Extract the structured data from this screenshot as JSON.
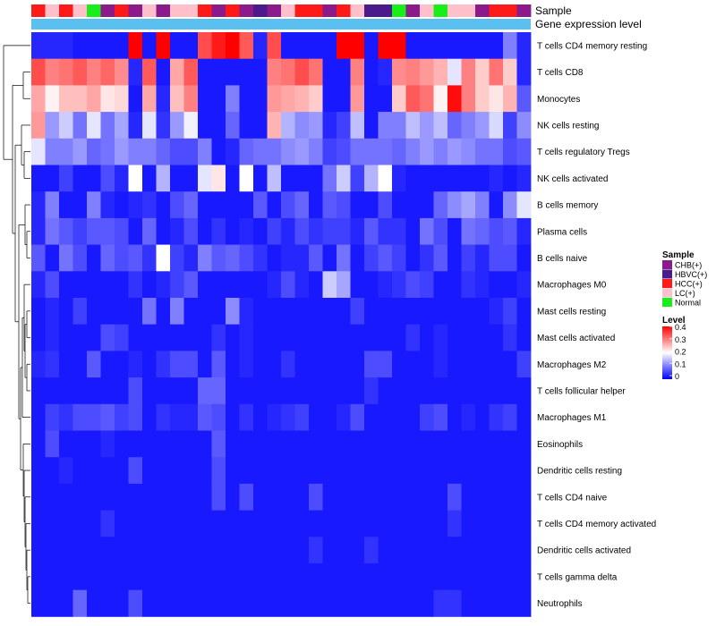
{
  "chart_data": {
    "type": "heatmap",
    "title": "",
    "annotation_labels": {
      "sample": "Sample",
      "gene_expression": "Gene expression level"
    },
    "column_count": 36,
    "rows": [
      "T cells CD4 memory resting",
      "T cells CD8",
      "Monocytes",
      "NK cells resting",
      "T cells regulatory  Tregs",
      "NK cells activated",
      "B cells memory",
      "Plasma cells",
      "B cells naive",
      "Macrophages M0",
      "Mast cells resting",
      "Mast cells activated",
      "Macrophages M2",
      "T cells follicular helper",
      "Macrophages M1",
      "Eosinophils",
      "Dendritic cells resting",
      "T cells CD4 naive",
      "T cells CD4 memory activated",
      "Dendritic cells activated",
      "T cells gamma delta",
      "Neutrophils"
    ],
    "column_samples": [
      "HCC(+)",
      "LC(+)",
      "HCC(+)",
      "LC(+)",
      "Normal",
      "CHB(+)",
      "HCC(+)",
      "CHB(+)",
      "LC(+)",
      "CHB(+)",
      "LC(+)",
      "LC(+)",
      "HCC(+)",
      "CHB(+)",
      "HCC(+)",
      "CHB(+)",
      "HBVC(+)",
      "CHB(+)",
      "LC(+)",
      "HCC(+)",
      "HCC(+)",
      "CHB(+)",
      "HCC(+)",
      "LC(+)",
      "HBVC(+)",
      "HBVC(+)",
      "Normal",
      "CHB(+)",
      "LC(+)",
      "Normal",
      "LC(+)",
      "LC(+)",
      "CHB(+)",
      "HCC(+)",
      "HCC(+)",
      "CHB(+)"
    ],
    "values": [
      [
        0.03,
        0.03,
        0.03,
        0.02,
        0.02,
        0.02,
        0.02,
        0.4,
        0.02,
        0.4,
        0.02,
        0.02,
        0.34,
        0.38,
        0.4,
        0.33,
        0.03,
        0.34,
        0.02,
        0.02,
        0.02,
        0.02,
        0.4,
        0.4,
        0.02,
        0.4,
        0.4,
        0.02,
        0.02,
        0.02,
        0.02,
        0.02,
        0.02,
        0.02,
        0.1,
        0.03
      ],
      [
        0.34,
        0.3,
        0.31,
        0.33,
        0.3,
        0.32,
        0.29,
        0.03,
        0.33,
        0.02,
        0.27,
        0.33,
        0.02,
        0.02,
        0.02,
        0.02,
        0.02,
        0.3,
        0.31,
        0.34,
        0.31,
        0.02,
        0.02,
        0.3,
        0.02,
        0.03,
        0.29,
        0.3,
        0.28,
        0.26,
        0.18,
        0.3,
        0.24,
        0.31,
        0.24,
        0.03
      ],
      [
        0.27,
        0.21,
        0.25,
        0.25,
        0.27,
        0.22,
        0.23,
        0.02,
        0.27,
        0.03,
        0.25,
        0.3,
        0.02,
        0.02,
        0.1,
        0.02,
        0.02,
        0.28,
        0.27,
        0.26,
        0.24,
        0.02,
        0.02,
        0.28,
        0.02,
        0.02,
        0.24,
        0.33,
        0.31,
        0.21,
        0.39,
        0.3,
        0.24,
        0.22,
        0.26,
        0.07
      ],
      [
        0.28,
        0.12,
        0.16,
        0.09,
        0.18,
        0.09,
        0.13,
        0.03,
        0.18,
        0.04,
        0.12,
        0.19,
        0.02,
        0.02,
        0.08,
        0.02,
        0.02,
        0.26,
        0.14,
        0.11,
        0.12,
        0.03,
        0.05,
        0.15,
        0.02,
        0.1,
        0.1,
        0.15,
        0.12,
        0.15,
        0.08,
        0.1,
        0.12,
        0.17,
        0.05,
        0.11
      ],
      [
        0.18,
        0.1,
        0.1,
        0.12,
        0.08,
        0.09,
        0.12,
        0.1,
        0.1,
        0.08,
        0.06,
        0.06,
        0.1,
        0.02,
        0.03,
        0.08,
        0.09,
        0.09,
        0.11,
        0.12,
        0.1,
        0.05,
        0.06,
        0.09,
        0.09,
        0.09,
        0.08,
        0.1,
        0.12,
        0.1,
        0.12,
        0.11,
        0.09,
        0.09,
        0.06,
        0.07
      ],
      [
        0.02,
        0.02,
        0.05,
        0.02,
        0.02,
        0.06,
        0.03,
        0.2,
        0.02,
        0.14,
        0.02,
        0.02,
        0.18,
        0.22,
        0.02,
        0.2,
        0.02,
        0.15,
        0.02,
        0.02,
        0.02,
        0.09,
        0.16,
        0.05,
        0.14,
        0.2,
        0.03,
        0.02,
        0.02,
        0.02,
        0.02,
        0.02,
        0.02,
        0.03,
        0.02,
        0.03
      ],
      [
        0.03,
        0.1,
        0.02,
        0.02,
        0.1,
        0.03,
        0.02,
        0.03,
        0.04,
        0.02,
        0.06,
        0.08,
        0.02,
        0.02,
        0.02,
        0.02,
        0.07,
        0.02,
        0.06,
        0.08,
        0.02,
        0.07,
        0.06,
        0.02,
        0.02,
        0.06,
        0.02,
        0.02,
        0.02,
        0.08,
        0.11,
        0.13,
        0.1,
        0.02,
        0.11,
        0.18
      ],
      [
        0.03,
        0.09,
        0.07,
        0.05,
        0.07,
        0.07,
        0.06,
        0.02,
        0.08,
        0.02,
        0.03,
        0.06,
        0.02,
        0.04,
        0.02,
        0.03,
        0.02,
        0.05,
        0.03,
        0.06,
        0.04,
        0.05,
        0.05,
        0.03,
        0.07,
        0.04,
        0.04,
        0.02,
        0.09,
        0.06,
        0.02,
        0.09,
        0.08,
        0.06,
        0.07,
        0.03
      ],
      [
        0.07,
        0.02,
        0.09,
        0.06,
        0.02,
        0.08,
        0.06,
        0.07,
        0.04,
        0.2,
        0.05,
        0.03,
        0.1,
        0.07,
        0.08,
        0.06,
        0.04,
        0.02,
        0.03,
        0.03,
        0.07,
        0.02,
        0.09,
        0.02,
        0.05,
        0.07,
        0.05,
        0.02,
        0.04,
        0.07,
        0.02,
        0.05,
        0.03,
        0.06,
        0.06,
        0.02
      ],
      [
        0.03,
        0.06,
        0.02,
        0.02,
        0.02,
        0.02,
        0.02,
        0.04,
        0.02,
        0.03,
        0.05,
        0.07,
        0.02,
        0.02,
        0.02,
        0.02,
        0.02,
        0.03,
        0.06,
        0.03,
        0.02,
        0.16,
        0.13,
        0.02,
        0.02,
        0.03,
        0.04,
        0.06,
        0.05,
        0.02,
        0.02,
        0.04,
        0.03,
        0.02,
        0.02,
        0.03
      ],
      [
        0.02,
        0.03,
        0.02,
        0.05,
        0.02,
        0.02,
        0.02,
        0.02,
        0.09,
        0.02,
        0.1,
        0.02,
        0.02,
        0.02,
        0.11,
        0.03,
        0.02,
        0.02,
        0.02,
        0.02,
        0.02,
        0.02,
        0.02,
        0.05,
        0.02,
        0.02,
        0.02,
        0.02,
        0.02,
        0.02,
        0.02,
        0.02,
        0.02,
        0.03,
        0.05,
        0.02
      ],
      [
        0.02,
        0.03,
        0.02,
        0.02,
        0.02,
        0.06,
        0.05,
        0.02,
        0.02,
        0.02,
        0.02,
        0.02,
        0.02,
        0.04,
        0.02,
        0.03,
        0.02,
        0.02,
        0.02,
        0.02,
        0.02,
        0.02,
        0.02,
        0.02,
        0.02,
        0.02,
        0.02,
        0.04,
        0.02,
        0.03,
        0.02,
        0.02,
        0.02,
        0.02,
        0.04,
        0.02
      ],
      [
        0.03,
        0.04,
        0.02,
        0.02,
        0.07,
        0.02,
        0.02,
        0.03,
        0.02,
        0.04,
        0.06,
        0.06,
        0.02,
        0.07,
        0.02,
        0.03,
        0.02,
        0.02,
        0.04,
        0.02,
        0.02,
        0.02,
        0.02,
        0.02,
        0.06,
        0.06,
        0.02,
        0.02,
        0.02,
        0.03,
        0.02,
        0.02,
        0.02,
        0.02,
        0.02,
        0.05
      ],
      [
        0.02,
        0.02,
        0.02,
        0.02,
        0.02,
        0.02,
        0.02,
        0.06,
        0.02,
        0.02,
        0.02,
        0.02,
        0.08,
        0.08,
        0.02,
        0.02,
        0.02,
        0.02,
        0.02,
        0.02,
        0.02,
        0.02,
        0.02,
        0.02,
        0.04,
        0.02,
        0.02,
        0.02,
        0.02,
        0.02,
        0.02,
        0.02,
        0.02,
        0.02,
        0.02,
        0.02
      ],
      [
        0.02,
        0.05,
        0.04,
        0.06,
        0.06,
        0.07,
        0.05,
        0.06,
        0.02,
        0.04,
        0.03,
        0.03,
        0.07,
        0.06,
        0.02,
        0.04,
        0.02,
        0.03,
        0.04,
        0.05,
        0.02,
        0.02,
        0.03,
        0.06,
        0.02,
        0.02,
        0.02,
        0.02,
        0.05,
        0.06,
        0.02,
        0.03,
        0.02,
        0.04,
        0.05,
        0.02
      ],
      [
        0.02,
        0.06,
        0.02,
        0.02,
        0.02,
        0.03,
        0.02,
        0.02,
        0.02,
        0.02,
        0.02,
        0.02,
        0.02,
        0.07,
        0.02,
        0.02,
        0.02,
        0.02,
        0.02,
        0.02,
        0.02,
        0.02,
        0.02,
        0.02,
        0.02,
        0.02,
        0.02,
        0.02,
        0.02,
        0.02,
        0.02,
        0.02,
        0.02,
        0.02,
        0.02,
        0.02
      ],
      [
        0.02,
        0.02,
        0.03,
        0.02,
        0.02,
        0.02,
        0.02,
        0.06,
        0.02,
        0.02,
        0.02,
        0.02,
        0.02,
        0.06,
        0.02,
        0.02,
        0.02,
        0.02,
        0.02,
        0.02,
        0.02,
        0.02,
        0.02,
        0.02,
        0.02,
        0.02,
        0.02,
        0.02,
        0.02,
        0.02,
        0.02,
        0.02,
        0.02,
        0.02,
        0.02,
        0.02
      ],
      [
        0.02,
        0.02,
        0.02,
        0.02,
        0.02,
        0.02,
        0.02,
        0.02,
        0.02,
        0.02,
        0.02,
        0.02,
        0.02,
        0.06,
        0.02,
        0.06,
        0.02,
        0.02,
        0.02,
        0.02,
        0.06,
        0.02,
        0.02,
        0.02,
        0.02,
        0.02,
        0.02,
        0.02,
        0.02,
        0.02,
        0.06,
        0.02,
        0.02,
        0.02,
        0.02,
        0.02
      ],
      [
        0.02,
        0.02,
        0.02,
        0.02,
        0.02,
        0.04,
        0.02,
        0.02,
        0.02,
        0.02,
        0.02,
        0.02,
        0.02,
        0.02,
        0.02,
        0.02,
        0.02,
        0.02,
        0.02,
        0.02,
        0.02,
        0.02,
        0.02,
        0.02,
        0.02,
        0.02,
        0.02,
        0.02,
        0.02,
        0.02,
        0.04,
        0.02,
        0.02,
        0.02,
        0.02,
        0.02
      ],
      [
        0.02,
        0.02,
        0.02,
        0.02,
        0.02,
        0.02,
        0.02,
        0.02,
        0.02,
        0.02,
        0.02,
        0.02,
        0.02,
        0.02,
        0.02,
        0.02,
        0.02,
        0.02,
        0.02,
        0.02,
        0.04,
        0.02,
        0.02,
        0.02,
        0.04,
        0.02,
        0.02,
        0.02,
        0.02,
        0.02,
        0.02,
        0.02,
        0.02,
        0.02,
        0.02,
        0.02
      ],
      [
        0.02,
        0.02,
        0.02,
        0.02,
        0.02,
        0.02,
        0.02,
        0.02,
        0.02,
        0.02,
        0.02,
        0.02,
        0.02,
        0.02,
        0.02,
        0.02,
        0.02,
        0.02,
        0.02,
        0.02,
        0.02,
        0.02,
        0.02,
        0.02,
        0.02,
        0.02,
        0.02,
        0.02,
        0.02,
        0.02,
        0.02,
        0.02,
        0.02,
        0.02,
        0.02,
        0.02
      ],
      [
        0.02,
        0.02,
        0.02,
        0.08,
        0.02,
        0.02,
        0.02,
        0.06,
        0.02,
        0.02,
        0.02,
        0.02,
        0.02,
        0.02,
        0.02,
        0.02,
        0.02,
        0.02,
        0.02,
        0.02,
        0.02,
        0.02,
        0.02,
        0.02,
        0.02,
        0.02,
        0.02,
        0.02,
        0.02,
        0.04,
        0.04,
        0.02,
        0.02,
        0.02,
        0.02,
        0.02
      ]
    ],
    "value_range": [
      0,
      0.4
    ],
    "legend": {
      "position": "right",
      "sample_title": "Sample",
      "sample_entries": [
        {
          "label": "CHB(+)",
          "color": "#8b1a8b"
        },
        {
          "label": "HBVC(+)",
          "color": "#4b1a8b"
        },
        {
          "label": "HCC(+)",
          "color": "#ff1a1a"
        },
        {
          "label": "LC(+)",
          "color": "#ffc0cb"
        },
        {
          "label": "Normal",
          "color": "#1aee1a"
        }
      ],
      "level_title": "Level",
      "level_ticks": [
        "0.4",
        "0.3",
        "0.2",
        "0.1",
        "0"
      ],
      "level_tick_values": [
        0.4,
        0.3,
        0.2,
        0.1,
        0
      ]
    },
    "gene_expression_color": "#5bc0f0",
    "colors": {
      "low": "#0000ff",
      "mid": "#ffffff",
      "high": "#ff0000"
    }
  }
}
